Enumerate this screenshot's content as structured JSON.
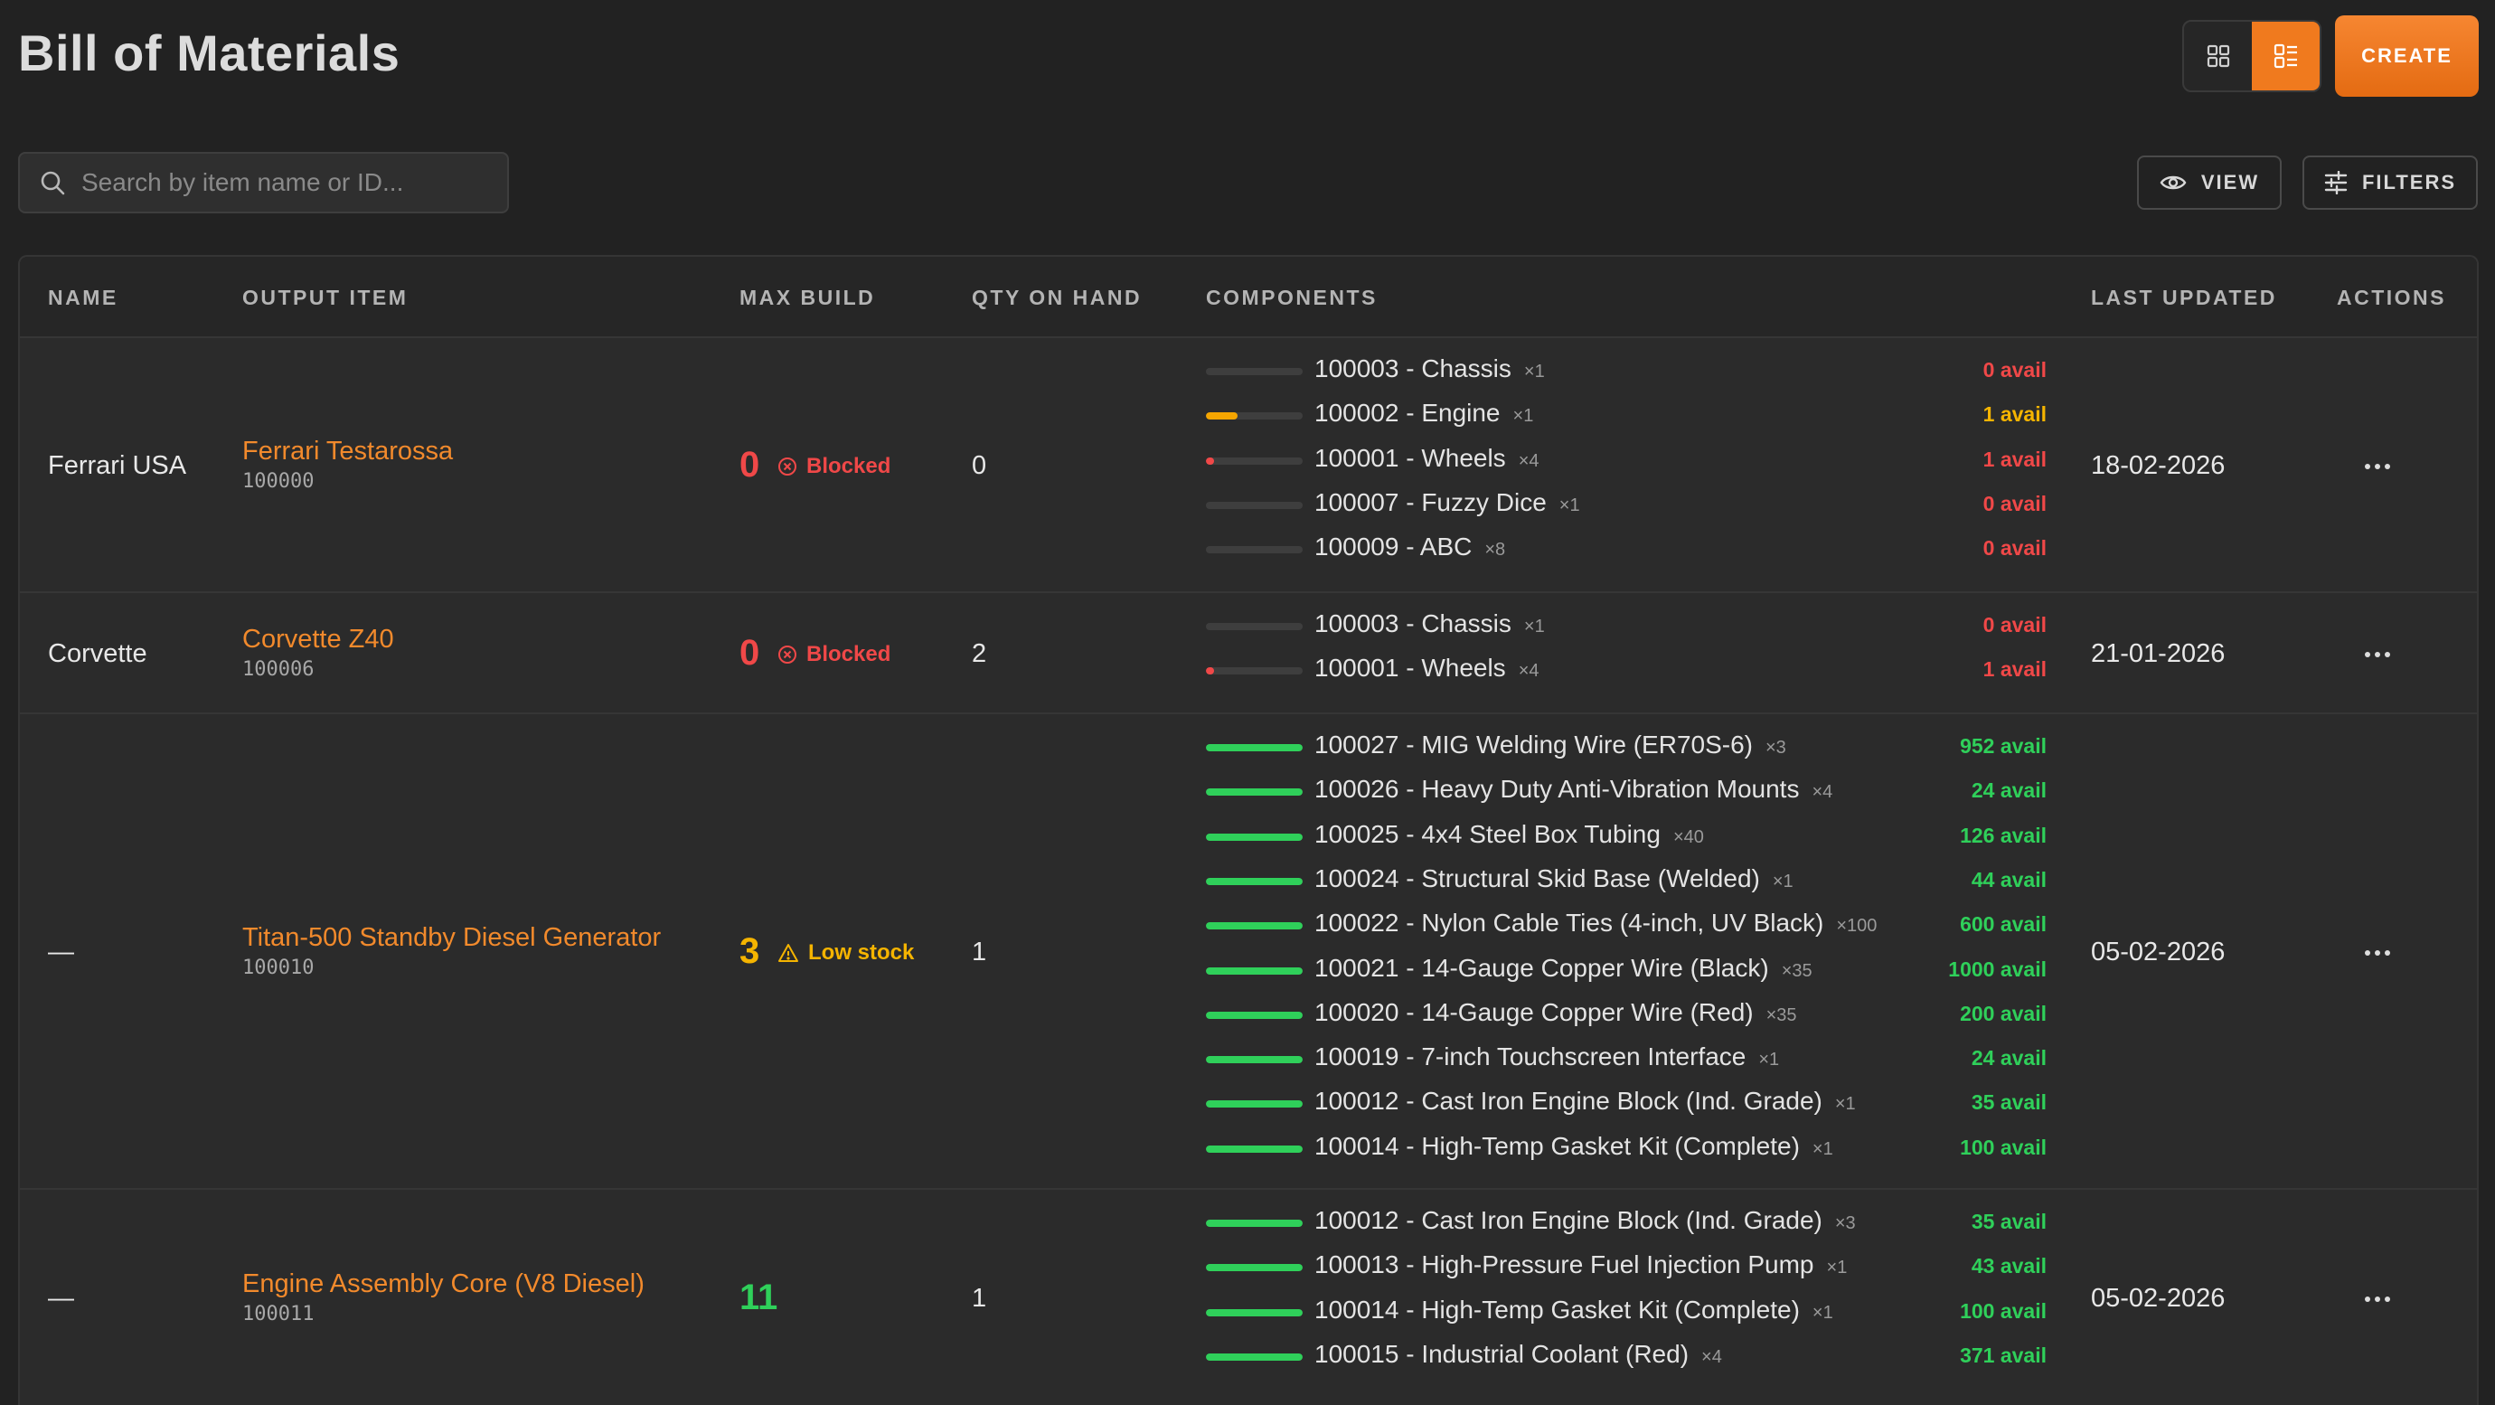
{
  "header": {
    "title": "Bill of Materials",
    "create_label": "CREATE"
  },
  "toolbar": {
    "search_placeholder": "Search by item name or ID...",
    "view_label": "VIEW",
    "filters_label": "FILTERS"
  },
  "colors": {
    "accent": "#f07a1e",
    "blocked": "#f04848",
    "low_stock": "#f5b400",
    "ok": "#2fd05a"
  },
  "table": {
    "columns": [
      "NAME",
      "OUTPUT ITEM",
      "MAX BUILD",
      "QTY ON HAND",
      "COMPONENTS",
      "LAST UPDATED",
      "ACTIONS"
    ],
    "rows": [
      {
        "name": "Ferrari USA",
        "item_name": "Ferrari Testarossa",
        "item_id": "100000",
        "max_build": "0",
        "status": "Blocked",
        "status_type": "blocked",
        "qty": "0",
        "updated": "18-02-2026",
        "components": [
          {
            "label": "100003 - Chassis",
            "mult": "×1",
            "avail": "0 avail",
            "level": 0,
            "state": "red"
          },
          {
            "label": "100002 - Engine",
            "mult": "×1",
            "avail": "1 avail",
            "level": 0.33,
            "state": "yellow"
          },
          {
            "label": "100001 - Wheels",
            "mult": "×4",
            "avail": "1 avail",
            "level": 0.06,
            "state": "red"
          },
          {
            "label": "100007 - Fuzzy Dice",
            "mult": "×1",
            "avail": "0 avail",
            "level": 0,
            "state": "red"
          },
          {
            "label": "100009 - ABC",
            "mult": "×8",
            "avail": "0 avail",
            "level": 0,
            "state": "red"
          }
        ]
      },
      {
        "name": "Corvette",
        "item_name": "Corvette Z40",
        "item_id": "100006",
        "max_build": "0",
        "status": "Blocked",
        "status_type": "blocked",
        "qty": "2",
        "updated": "21-01-2026",
        "components": [
          {
            "label": "100003 - Chassis",
            "mult": "×1",
            "avail": "0 avail",
            "level": 0,
            "state": "red"
          },
          {
            "label": "100001 - Wheels",
            "mult": "×4",
            "avail": "1 avail",
            "level": 0.06,
            "state": "red"
          }
        ]
      },
      {
        "name": "—",
        "item_name": "Titan-500 Standby Diesel Generator",
        "item_id": "100010",
        "max_build": "3",
        "status": "Low stock",
        "status_type": "low",
        "qty": "1",
        "updated": "05-02-2026",
        "components": [
          {
            "label": "100027 - MIG Welding Wire (ER70S-6)",
            "mult": "×3",
            "avail": "952 avail",
            "level": 1,
            "state": "green"
          },
          {
            "label": "100026 - Heavy Duty Anti-Vibration Mounts",
            "mult": "×4",
            "avail": "24 avail",
            "level": 1,
            "state": "green"
          },
          {
            "label": "100025 - 4x4 Steel Box Tubing",
            "mult": "×40",
            "avail": "126 avail",
            "level": 1,
            "state": "green"
          },
          {
            "label": "100024 - Structural Skid Base (Welded)",
            "mult": "×1",
            "avail": "44 avail",
            "level": 1,
            "state": "green"
          },
          {
            "label": "100022 - Nylon Cable Ties (4-inch, UV Black)",
            "mult": "×100",
            "avail": "600 avail",
            "level": 1,
            "state": "green"
          },
          {
            "label": "100021 - 14-Gauge Copper Wire (Black)",
            "mult": "×35",
            "avail": "1000 avail",
            "level": 1,
            "state": "green"
          },
          {
            "label": "100020 - 14-Gauge Copper Wire (Red)",
            "mult": "×35",
            "avail": "200 avail",
            "level": 1,
            "state": "green"
          },
          {
            "label": "100019 - 7-inch Touchscreen Interface",
            "mult": "×1",
            "avail": "24 avail",
            "level": 1,
            "state": "green"
          },
          {
            "label": "100012 - Cast Iron Engine Block (Ind. Grade)",
            "mult": "×1",
            "avail": "35 avail",
            "level": 1,
            "state": "green"
          },
          {
            "label": "100014 - High-Temp Gasket Kit (Complete)",
            "mult": "×1",
            "avail": "100 avail",
            "level": 1,
            "state": "green"
          }
        ]
      },
      {
        "name": "—",
        "item_name": "Engine Assembly Core (V8 Diesel)",
        "item_id": "100011",
        "max_build": "11",
        "status": "",
        "status_type": "ok",
        "qty": "1",
        "updated": "05-02-2026",
        "components": [
          {
            "label": "100012 - Cast Iron Engine Block (Ind. Grade)",
            "mult": "×3",
            "avail": "35 avail",
            "level": 1,
            "state": "green"
          },
          {
            "label": "100013 - High-Pressure Fuel Injection Pump",
            "mult": "×1",
            "avail": "43 avail",
            "level": 1,
            "state": "green"
          },
          {
            "label": "100014 - High-Temp Gasket Kit (Complete)",
            "mult": "×1",
            "avail": "100 avail",
            "level": 1,
            "state": "green"
          },
          {
            "label": "100015 - Industrial Coolant (Red)",
            "mult": "×4",
            "avail": "371 avail",
            "level": 1,
            "state": "green"
          }
        ]
      }
    ]
  }
}
